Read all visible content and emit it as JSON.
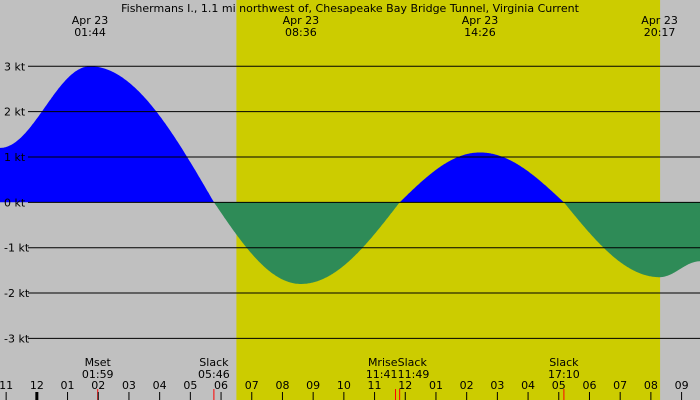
{
  "chart_data": {
    "type": "area",
    "title": "Fishermans I., 1.1 mi northwest of, Chesapeake Bay Bridge Tunnel, Virginia Current",
    "xlabel": "",
    "ylabel": "",
    "unit": "kt",
    "ylim": [
      -3.3,
      3.8
    ],
    "xlim_hours": [
      -1.2,
      21.6
    ],
    "yticks": [
      {
        "value": 3,
        "label": "3 kt"
      },
      {
        "value": 2,
        "label": "2 kt"
      },
      {
        "value": 1,
        "label": "1 kt"
      },
      {
        "value": 0,
        "label": "0 kt"
      },
      {
        "value": -1,
        "label": "-1 kt"
      },
      {
        "value": -2,
        "label": "-2 kt"
      },
      {
        "value": -3,
        "label": "-3 kt"
      }
    ],
    "daylight_hours": [
      6.5,
      20.3
    ],
    "series": [
      {
        "name": "",
        "points": [
          {
            "t": -1.2,
            "v": 1.2
          },
          {
            "t": 1.733,
            "v": 3.0
          },
          {
            "t": 5.77,
            "v": 0.0
          },
          {
            "t": 8.6,
            "v": -1.8
          },
          {
            "t": 11.817,
            "v": 0.0
          },
          {
            "t": 14.433,
            "v": 1.1
          },
          {
            "t": 17.167,
            "v": 0.0
          },
          {
            "t": 20.283,
            "v": -1.65
          },
          {
            "t": 21.6,
            "v": -1.3
          }
        ]
      }
    ],
    "colors": {
      "flood": "#0000ff",
      "ebb": "#2e8b57",
      "day": "#cccc00",
      "night": "#c0c0c0"
    },
    "top_labels": [
      {
        "t": 1.733,
        "date": "Apr 23",
        "time": "01:44"
      },
      {
        "t": 8.6,
        "date": "Apr 23",
        "time": "08:36"
      },
      {
        "t": 14.433,
        "date": "Apr 23",
        "time": "14:26"
      },
      {
        "t": 20.283,
        "date": "Apr 23",
        "time": "20:17"
      }
    ],
    "bottom_events": [
      {
        "t": 1.983,
        "name": "Mset",
        "time": "01:59"
      },
      {
        "t": 5.767,
        "name": "Slack",
        "time": "05:46"
      },
      {
        "t": 11.683,
        "name": "Mrise",
        "time": "11:41"
      },
      {
        "t": 11.817,
        "name": "Slack",
        "time": "11:49"
      },
      {
        "t": 17.167,
        "name": "Slack",
        "time": "17:10"
      }
    ],
    "hour_ticks": [
      {
        "t": -1,
        "label": "11"
      },
      {
        "t": 0,
        "label": "12"
      },
      {
        "t": 1,
        "label": "01"
      },
      {
        "t": 2,
        "label": "02"
      },
      {
        "t": 3,
        "label": "03"
      },
      {
        "t": 4,
        "label": "04"
      },
      {
        "t": 5,
        "label": "05"
      },
      {
        "t": 6,
        "label": "06"
      },
      {
        "t": 7,
        "label": "07"
      },
      {
        "t": 8,
        "label": "08"
      },
      {
        "t": 9,
        "label": "09"
      },
      {
        "t": 10,
        "label": "10"
      },
      {
        "t": 11,
        "label": "11"
      },
      {
        "t": 12,
        "label": "12"
      },
      {
        "t": 13,
        "label": "01"
      },
      {
        "t": 14,
        "label": "02"
      },
      {
        "t": 15,
        "label": "03"
      },
      {
        "t": 16,
        "label": "04"
      },
      {
        "t": 17,
        "label": "05"
      },
      {
        "t": 18,
        "label": "06"
      },
      {
        "t": 19,
        "label": "07"
      },
      {
        "t": 20,
        "label": "08"
      },
      {
        "t": 21,
        "label": "09"
      }
    ]
  }
}
